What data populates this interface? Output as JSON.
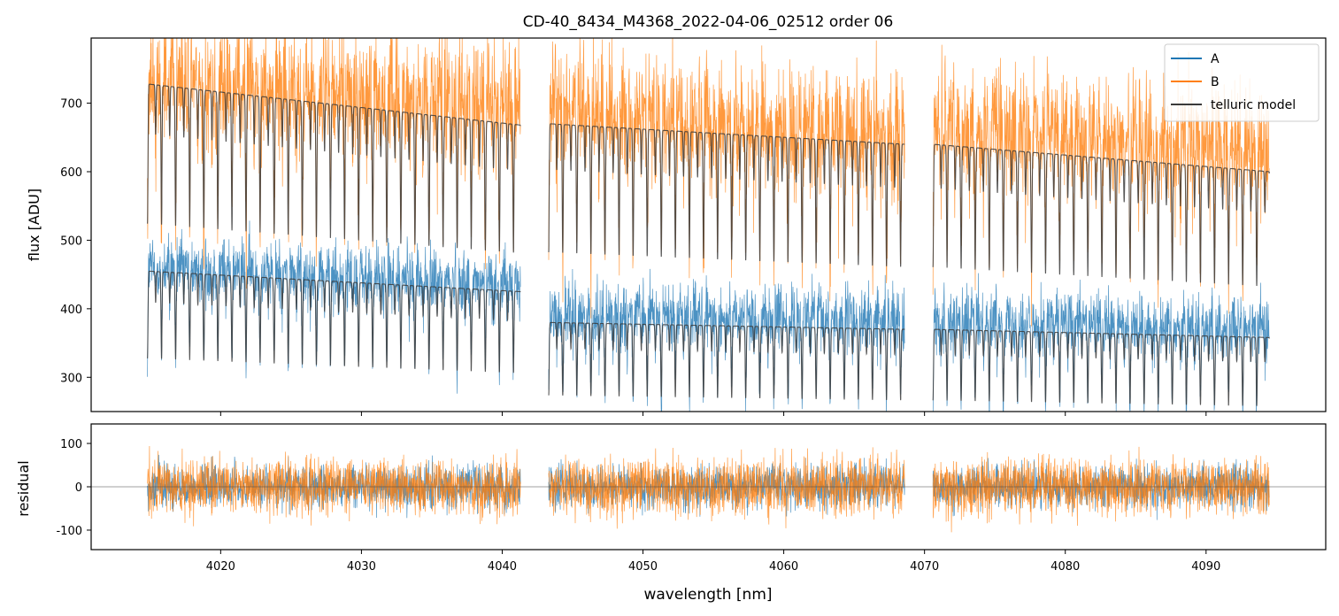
{
  "figure": {
    "title": "CD-40_8434_M4368_2022-04-06_02512  order 06"
  },
  "chart_data": [
    {
      "panel": "top",
      "type": "line",
      "title": "CD-40_8434_M4368_2022-04-06_02512  order 06",
      "xlabel": "",
      "ylabel": "flux [ADU]",
      "xlim": [
        4010.8,
        4098.5
      ],
      "ylim": [
        250,
        795
      ],
      "y_ticks": [
        300,
        400,
        500,
        600,
        700
      ],
      "x_ticks": [
        4020,
        4030,
        4040,
        4050,
        4060,
        4070,
        4080,
        4090
      ],
      "x_ticklabels_visible": false,
      "legend": {
        "placement": "top-right",
        "entries": [
          "A",
          "B",
          "telluric model"
        ]
      },
      "grid": false,
      "segments": [
        [
          4014.8,
          4041.3
        ],
        [
          4043.3,
          4068.6
        ],
        [
          4070.6,
          4094.5
        ]
      ],
      "series": [
        {
          "name": "A",
          "color": "#1f77b4",
          "level_by_segment_start_end": [
            [
              462,
              438
            ],
            [
              392,
              385
            ],
            [
              385,
              372
            ]
          ],
          "noise_amplitude": 40
        },
        {
          "name": "B",
          "color": "#ff7f0e",
          "level_by_segment_start_end": [
            [
              735,
              700
            ],
            [
              695,
              655
            ],
            [
              668,
              635
            ]
          ],
          "noise_amplitude": 75
        },
        {
          "name": "telluric model",
          "color": "#3a3a3a",
          "level_by_segment_start_end": [
            [
              [
                455,
                425
              ],
              [
                728,
                668
              ]
            ],
            [
              [
                380,
                370
              ],
              [
                670,
                640
              ]
            ],
            [
              [
                370,
                358
              ],
              [
                640,
                600
              ]
            ]
          ],
          "line_spacing_nm": 1.0,
          "line_depth_fraction": 0.28
        }
      ]
    },
    {
      "panel": "bottom",
      "type": "line",
      "xlabel": "wavelength [nm]",
      "ylabel": "residual",
      "xlim": [
        4010.8,
        4098.5
      ],
      "ylim": [
        -145,
        145
      ],
      "y_ticks": [
        -100,
        0,
        100
      ],
      "x_ticks": [
        4020,
        4030,
        4040,
        4050,
        4060,
        4070,
        4080,
        4090
      ],
      "zero_line": true,
      "grid": false,
      "segments": [
        [
          4014.8,
          4041.3
        ],
        [
          4043.3,
          4068.6
        ],
        [
          4070.6,
          4094.5
        ]
      ],
      "series": [
        {
          "name": "A",
          "color": "#1f77b4",
          "noise_amplitude": 45
        },
        {
          "name": "B",
          "color": "#ff7f0e",
          "noise_amplitude": 60
        }
      ]
    }
  ]
}
